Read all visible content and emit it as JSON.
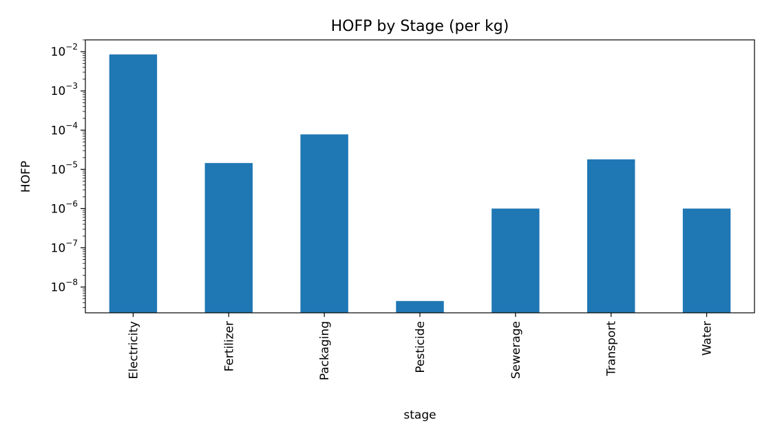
{
  "chart_data": {
    "type": "bar",
    "title": "HOFP by Stage (per kg)",
    "xlabel": "stage",
    "ylabel": "HOFP",
    "yscale": "log",
    "ylim": [
      2.2e-09,
      0.02
    ],
    "grid": false,
    "bar_color": "#1f77b4",
    "categories": [
      "Electricity",
      "Fertilizer",
      "Packaging",
      "Pesticide",
      "Sewerage",
      "Transport",
      "Water"
    ],
    "values": [
      0.0085,
      1.45e-05,
      7.8e-05,
      4.4e-09,
      1e-06,
      1.8e-05,
      1e-06
    ],
    "ytick_labels": [
      {
        "base": "10",
        "exp": "−8"
      },
      {
        "base": "10",
        "exp": "−7"
      },
      {
        "base": "10",
        "exp": "−6"
      },
      {
        "base": "10",
        "exp": "−5"
      },
      {
        "base": "10",
        "exp": "−4"
      },
      {
        "base": "10",
        "exp": "−3"
      },
      {
        "base": "10",
        "exp": "−2"
      }
    ]
  }
}
